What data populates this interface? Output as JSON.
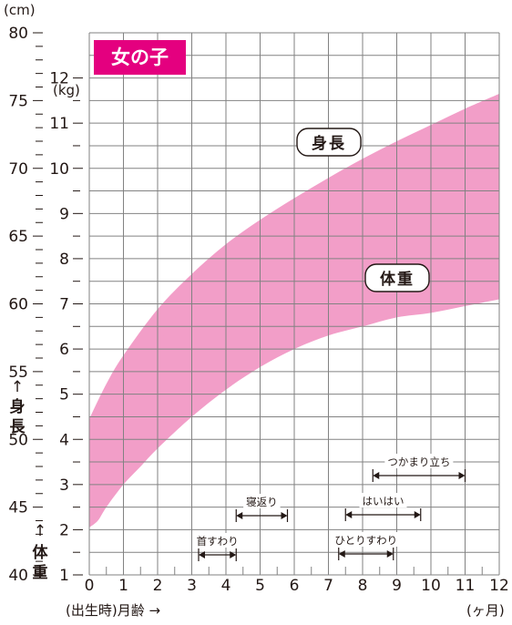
{
  "badge": "女の子",
  "chart_data": {
    "type": "area",
    "title": "",
    "x": {
      "ticks": [
        0,
        1,
        2,
        3,
        4,
        5,
        6,
        7,
        8,
        9,
        10,
        11,
        12
      ],
      "range": [
        0,
        12
      ],
      "label": "(出生時)月齢 →",
      "unit": "(ヶ月)"
    },
    "y_left": {
      "unit": "(cm)",
      "ticks": [
        40,
        45,
        50,
        55,
        60,
        65,
        70,
        75,
        80
      ],
      "range": [
        40,
        80
      ],
      "label_arrow": "↑",
      "label_chars": [
        "身",
        "長"
      ]
    },
    "y_right": {
      "unit": "(kg)",
      "ticks": [
        1,
        2,
        3,
        4,
        5,
        6,
        7,
        8,
        9,
        10,
        11,
        12
      ],
      "range": [
        1,
        13
      ],
      "label_arrow": "↑",
      "label_chars": [
        "体",
        "重"
      ]
    },
    "grid": true,
    "colors": {
      "band": "#f29ec8",
      "grid": "#828282",
      "badge": "#e4007f"
    },
    "series": [
      {
        "name": "身長",
        "axis": "cm",
        "x": [
          0,
          0.5,
          1,
          2,
          3,
          4,
          5,
          6,
          7,
          8,
          9,
          10,
          11,
          12
        ],
        "upper": [
          51.5,
          54.1,
          56.2,
          59.6,
          62.2,
          64.4,
          66.2,
          67.8,
          69.3,
          70.7,
          72.0,
          73.2,
          74.4,
          75.5
        ],
        "lower": [
          44.3,
          46.6,
          48.6,
          51.5,
          54.1,
          56.3,
          58.1,
          59.8,
          61.3,
          62.7,
          63.9,
          65.1,
          66.3,
          67.3
        ]
      },
      {
        "name": "体重",
        "axis": "kg",
        "x": [
          0,
          0.25,
          0.5,
          1,
          1.5,
          2,
          3,
          4,
          5,
          6,
          7,
          8,
          9,
          10,
          11,
          12
        ],
        "upper": [
          3.4,
          3.6,
          4.1,
          4.8,
          5.5,
          6.1,
          7.2,
          8.0,
          8.5,
          8.9,
          9.2,
          9.5,
          9.7,
          9.9,
          10.1,
          10.3
        ],
        "lower": [
          2.05,
          2.2,
          2.5,
          3.0,
          3.4,
          3.8,
          4.5,
          5.1,
          5.6,
          6.0,
          6.3,
          6.5,
          6.7,
          6.8,
          6.95,
          7.1
        ]
      }
    ],
    "milestones": [
      {
        "label": "首すわり",
        "start": 3.2,
        "end": 4.3
      },
      {
        "label": "寝返り",
        "start": 4.3,
        "end": 5.8
      },
      {
        "label": "ひとりすわり",
        "start": 7.3,
        "end": 8.9
      },
      {
        "label": "はいはい",
        "start": 7.5,
        "end": 9.7
      },
      {
        "label": "つかまり立ち",
        "start": 8.3,
        "end": 11.0
      }
    ]
  }
}
